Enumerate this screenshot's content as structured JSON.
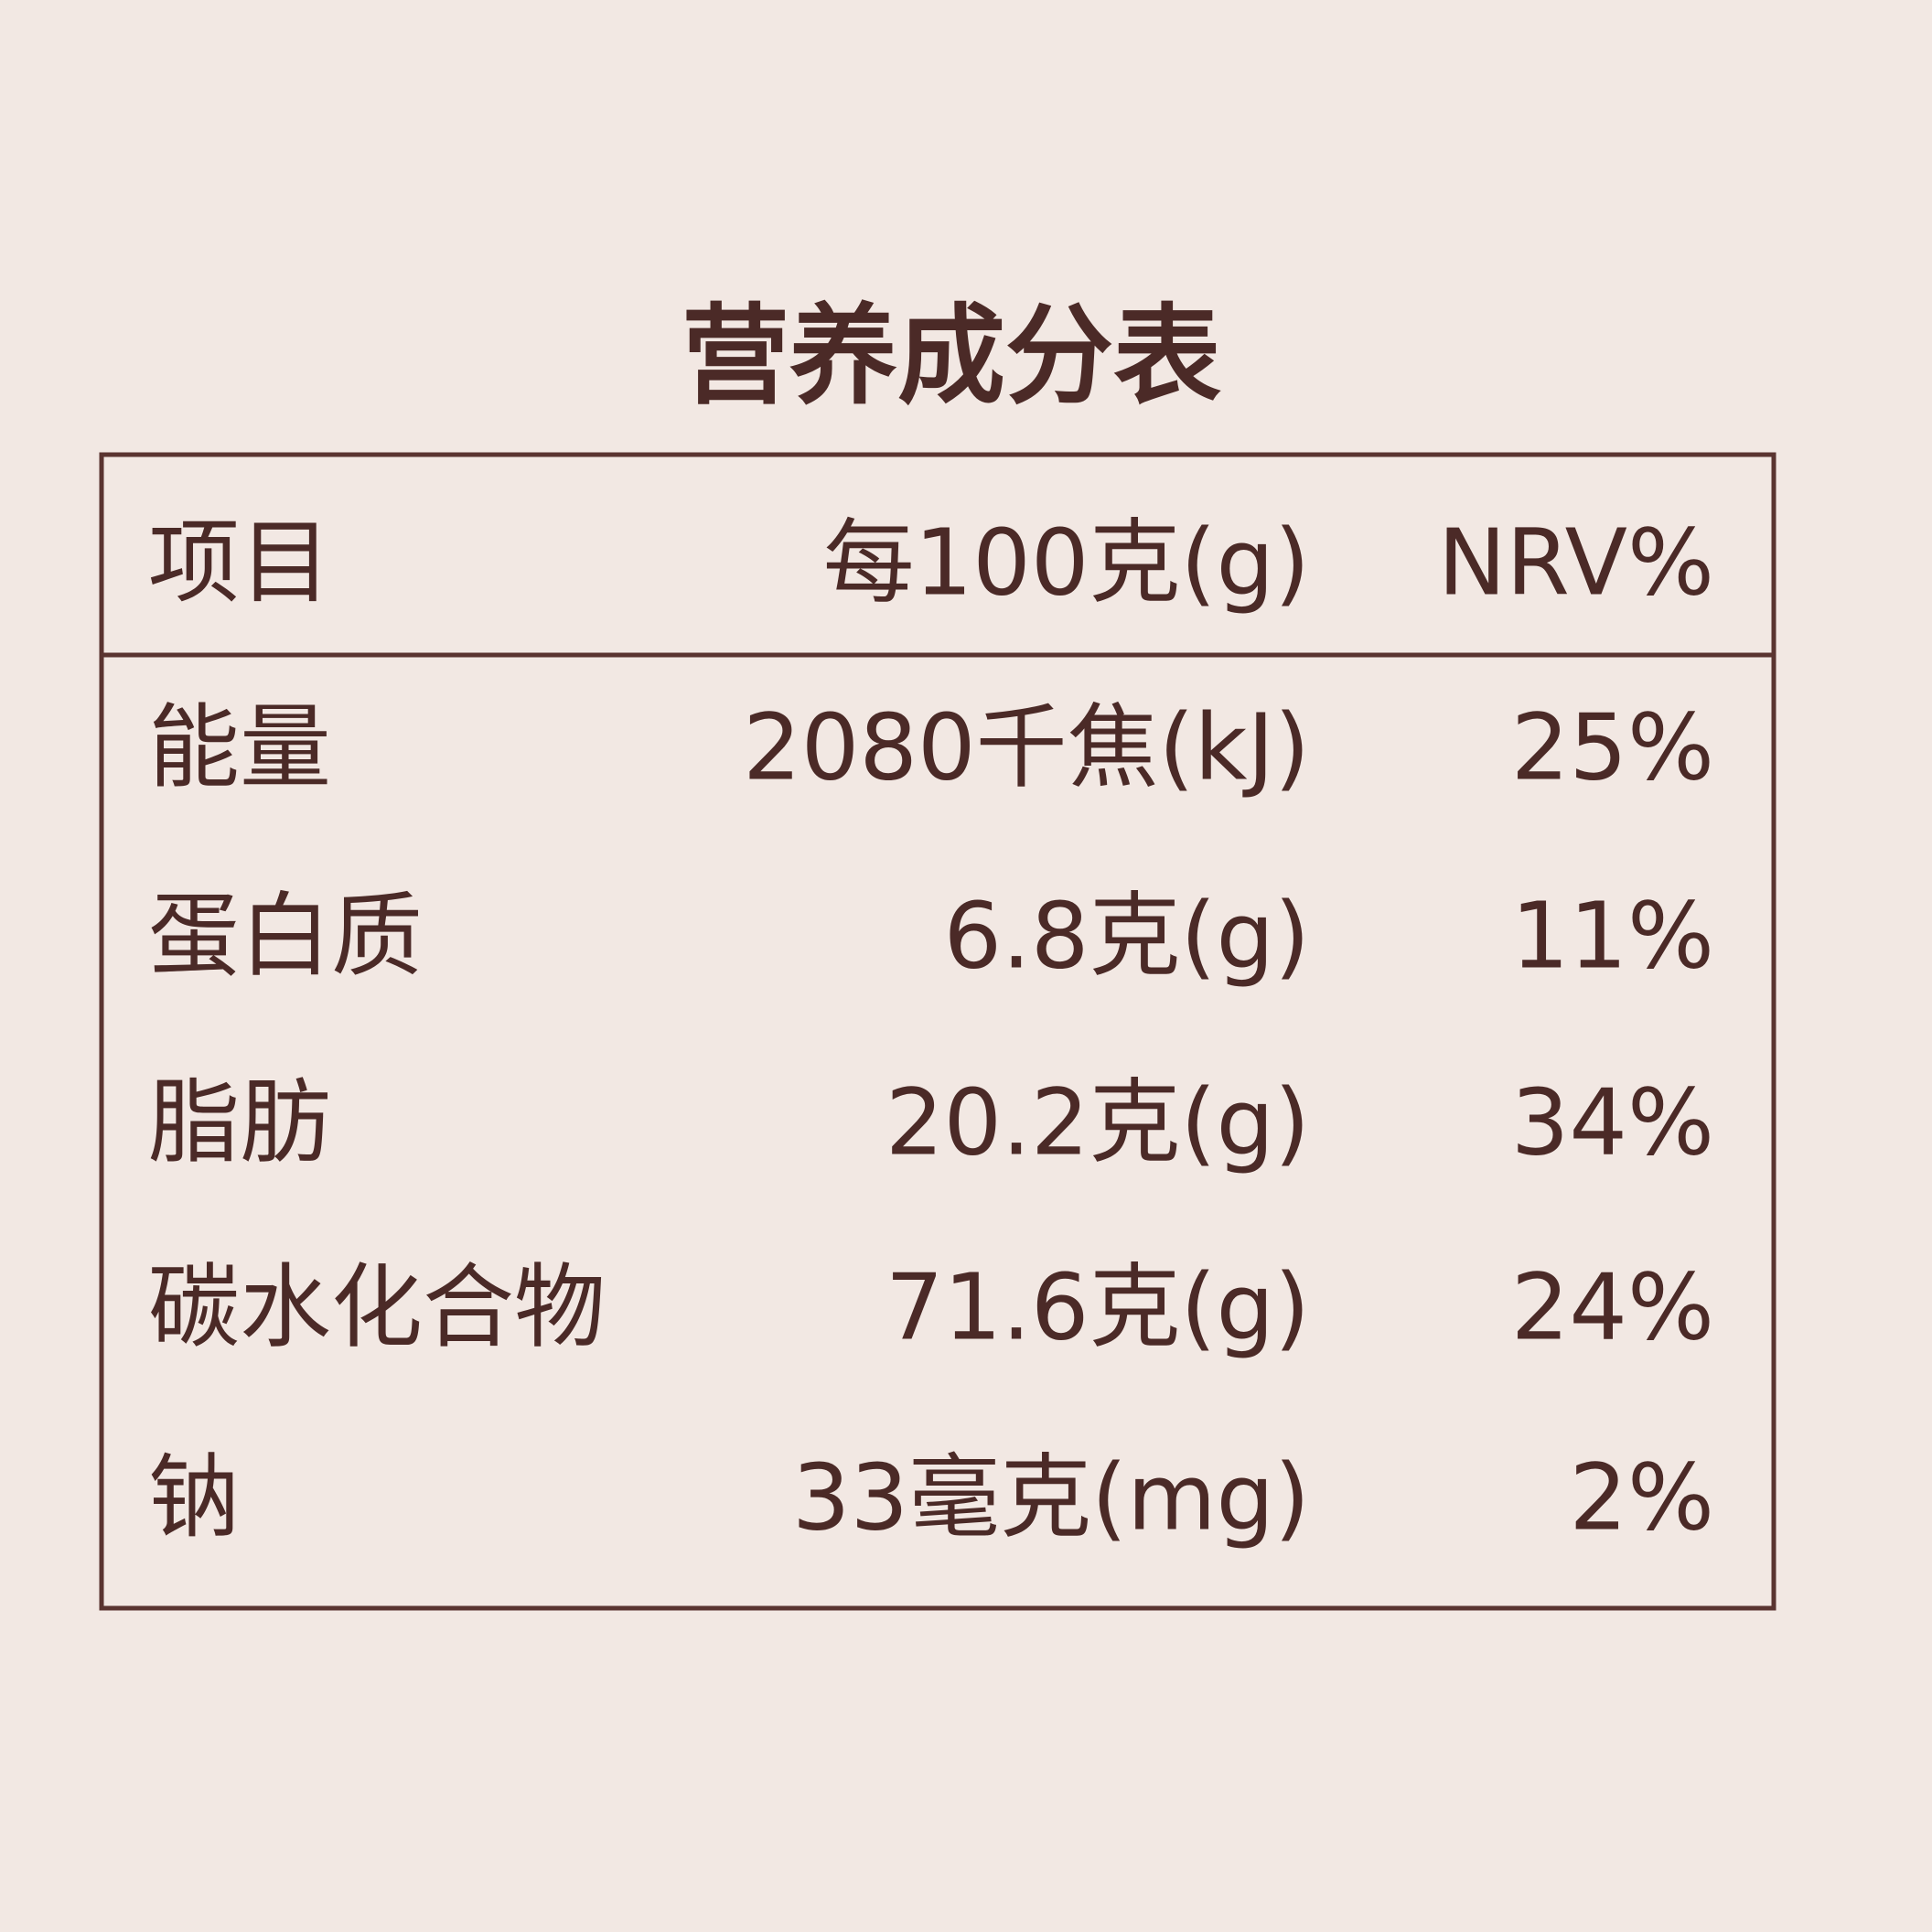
{
  "title": "营养成分表",
  "table": {
    "header": [
      "项目",
      "每100克(g)",
      "NRV%"
    ],
    "rows": [
      [
        "能量",
        "2080千焦(kJ)",
        "25%"
      ],
      [
        "蛋白质",
        "6.8克(g)",
        "11%"
      ],
      [
        "脂肪",
        "20.2克(g)",
        "34%"
      ],
      [
        "碳水化合物",
        "71.6克(g)",
        "24%"
      ],
      [
        "钠",
        "33毫克(mg)",
        "2%"
      ]
    ]
  }
}
